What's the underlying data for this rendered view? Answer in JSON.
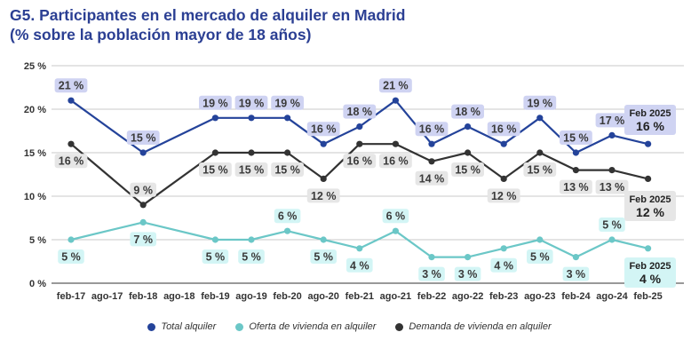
{
  "title_line1": "G5. Participantes en el mercado de alquiler en Madrid",
  "title_line2": "(% sobre la población mayor de 18 años)",
  "chart_data": {
    "type": "line",
    "categories": [
      "feb-17",
      "ago-17",
      "feb-18",
      "ago-18",
      "feb-19",
      "ago-19",
      "feb-20",
      "ago-20",
      "feb-21",
      "ago-21",
      "feb-22",
      "ago-22",
      "feb-23",
      "ago-23",
      "feb-24",
      "ago-24",
      "feb-25"
    ],
    "ylim": [
      0,
      25
    ],
    "yticks": [
      0,
      5,
      10,
      15,
      20,
      25
    ],
    "ytick_labels": [
      "0 %",
      "5 %",
      "10 %",
      "15 %",
      "20 %",
      "25 %"
    ],
    "grid": true,
    "legend_position": "bottom",
    "series": [
      {
        "name": "Total alquiler",
        "color": "#24439a",
        "label_color": "#cfd3f2",
        "points": [
          [
            0,
            21
          ],
          [
            2,
            15
          ],
          [
            4,
            19
          ],
          [
            5,
            19
          ],
          [
            6,
            19
          ],
          [
            7,
            16
          ],
          [
            8,
            18
          ],
          [
            9,
            21
          ],
          [
            10,
            16
          ],
          [
            11,
            18
          ],
          [
            12,
            16
          ],
          [
            13,
            19
          ],
          [
            14,
            15
          ],
          [
            15,
            17
          ],
          [
            16,
            16
          ]
        ],
        "labels": [
          "21 %",
          "15 %",
          "19 %",
          "19 %",
          "19 %",
          "16 %",
          "18 %",
          "21 %",
          "16 %",
          "18 %",
          "16 %",
          "19 %",
          "15 %",
          "17 %"
        ],
        "final_label_title": "Feb 2025",
        "final_label_value": "16 %"
      },
      {
        "name": "Oferta de vivienda en alquiler",
        "color": "#6bc7c7",
        "label_color": "#d3f5f5",
        "points": [
          [
            0,
            5
          ],
          [
            2,
            7
          ],
          [
            4,
            5
          ],
          [
            5,
            5
          ],
          [
            6,
            6
          ],
          [
            7,
            5
          ],
          [
            8,
            4
          ],
          [
            9,
            6
          ],
          [
            10,
            3
          ],
          [
            11,
            3
          ],
          [
            12,
            4
          ],
          [
            13,
            5
          ],
          [
            14,
            3
          ],
          [
            15,
            5
          ],
          [
            16,
            4
          ]
        ],
        "labels": [
          "5 %",
          "7 %",
          "5 %",
          "5 %",
          "6 %",
          "5 %",
          "4 %",
          "6 %",
          "3 %",
          "3 %",
          "4 %",
          "5 %",
          "3 %",
          "5 %"
        ],
        "final_label_title": "Feb 2025",
        "final_label_value": "4 %"
      },
      {
        "name": "Demanda de vivienda en alquiler",
        "color": "#333333",
        "label_color": "#e6e6e6",
        "points": [
          [
            0,
            16
          ],
          [
            2,
            9
          ],
          [
            4,
            15
          ],
          [
            5,
            15
          ],
          [
            6,
            15
          ],
          [
            7,
            12
          ],
          [
            8,
            16
          ],
          [
            9,
            16
          ],
          [
            10,
            14
          ],
          [
            11,
            15
          ],
          [
            12,
            12
          ],
          [
            13,
            15
          ],
          [
            14,
            13
          ],
          [
            15,
            13
          ],
          [
            16,
            12
          ]
        ],
        "labels": [
          "16 %",
          "9 %",
          "15 %",
          "15 %",
          "15 %",
          "12 %",
          "16 %",
          "16 %",
          "14 %",
          "15 %",
          "12 %",
          "15 %",
          "13 %",
          "13 %"
        ],
        "final_label_title": "Feb 2025",
        "final_label_value": "12 %"
      }
    ]
  }
}
